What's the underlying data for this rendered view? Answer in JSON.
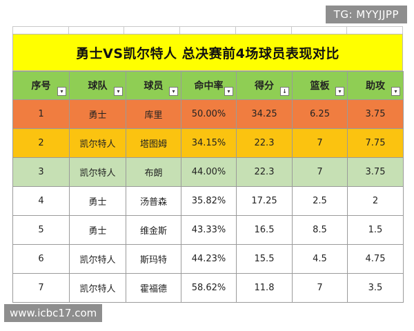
{
  "title": "勇士VS凯尔特人  总决赛前4场球员表现对比",
  "headers": [
    "序号",
    "球队",
    "球员",
    "命中率",
    "得分",
    "篮板",
    "助攻"
  ],
  "filter_icon": "filter-dropdown-icon",
  "sort_icon": "sort-descending-icon",
  "rows": [
    [
      "1",
      "勇士",
      "库里",
      "50.00%",
      "34.25",
      "6.25",
      "3.75"
    ],
    [
      "2",
      "凯尔特人",
      "塔图姆",
      "34.15%",
      "22.3",
      "7",
      "7.75"
    ],
    [
      "3",
      "凯尔特人",
      "布朗",
      "44.00%",
      "22.3",
      "7",
      "3.75"
    ],
    [
      "4",
      "勇士",
      "汤普森",
      "35.82%",
      "17.25",
      "2.5",
      "2"
    ],
    [
      "5",
      "勇士",
      "维金斯",
      "43.33%",
      "16.5",
      "8.5",
      "1.5"
    ],
    [
      "6",
      "凯尔特人",
      "斯玛特",
      "44.23%",
      "15.5",
      "4.5",
      "4.75"
    ],
    [
      "7",
      "凯尔特人",
      "霍福德",
      "58.62%",
      "11.8",
      "7",
      "3.5"
    ]
  ],
  "colors": {
    "title_bg": "#ffff00",
    "header_bg": "#8fce54",
    "row1_bg": "#f07d40",
    "row2_bg": "#fbc310",
    "row3_bg": "#c6e0b4"
  },
  "watermark_top": "TG: MYYJJPP",
  "watermark_bottom": "www.icbc17.com"
}
